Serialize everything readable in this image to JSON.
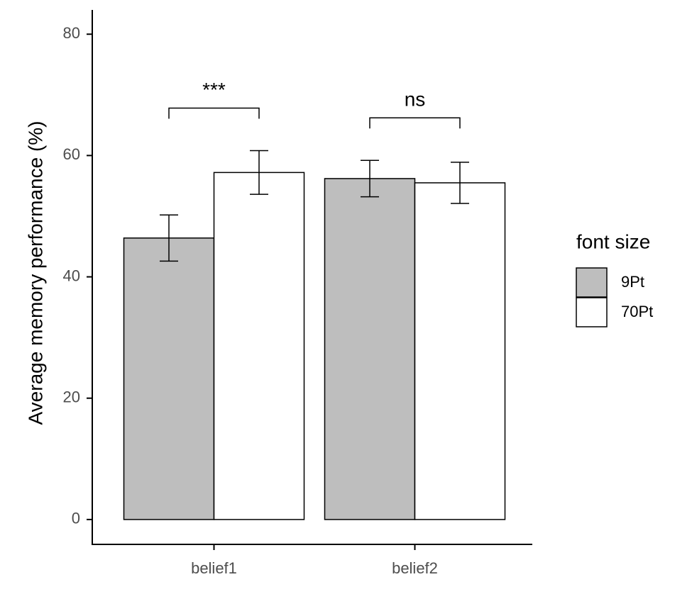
{
  "chart_data": {
    "type": "bar",
    "y_label": "Average memory performance (%)",
    "categories": [
      "belief1",
      "belief2"
    ],
    "legend_title": "font size",
    "series": [
      {
        "name": "9Pt",
        "color": "#bebebe",
        "values": [
          46.4,
          56.2
        ],
        "errors": [
          3.8,
          3.0
        ]
      },
      {
        "name": "70Pt",
        "color": "#ffffff",
        "values": [
          57.2,
          55.5
        ],
        "errors": [
          3.6,
          3.4
        ]
      }
    ],
    "annotations": [
      {
        "text": "***",
        "category": 0
      },
      {
        "text": "ns",
        "category": 1
      }
    ],
    "ylim": [
      -4.1,
      84
    ],
    "yticks": [
      0,
      20,
      40,
      60,
      80
    ],
    "grid": false,
    "legend": "right"
  }
}
